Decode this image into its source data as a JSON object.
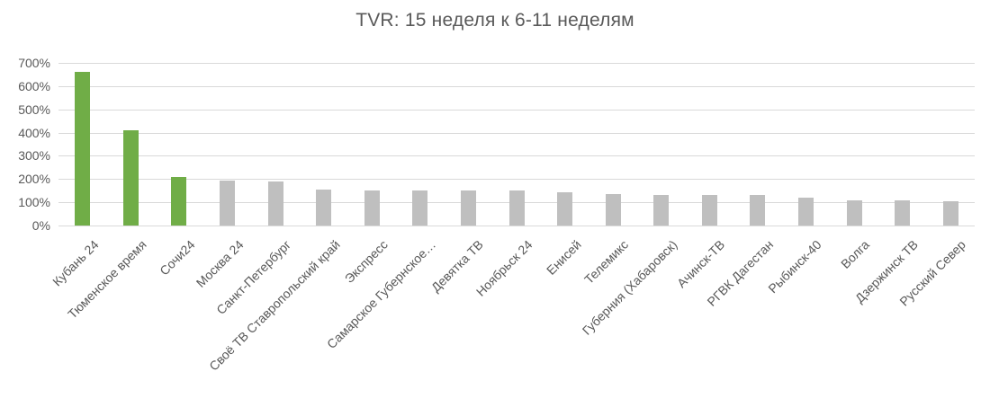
{
  "chart_data": {
    "type": "bar",
    "title": "TVR: 15 неделя к 6-11 неделям",
    "categories": [
      "Кубань 24",
      "Тюменское время",
      "Сочи24",
      "Москва 24",
      "Санкт-Петербург",
      "Своё ТВ Ставропольский край",
      "Экспресс",
      "Самарское Губернское…",
      "Девятка ТВ",
      "Ноябрьск 24",
      "Енисей",
      "Телемикс",
      "Губерния (Хабаровск)",
      "Ачинск-ТВ",
      "РГВК Дагестан",
      "Рыбинск-40",
      "Волга",
      "Дзержинск ТВ",
      "Русский Север"
    ],
    "values": [
      660,
      410,
      210,
      193,
      190,
      155,
      152,
      151,
      150,
      149,
      145,
      137,
      133,
      131,
      130,
      120,
      110,
      107,
      103
    ],
    "highlighted_categories": [
      "Кубань 24",
      "Тюменское время",
      "Сочи24"
    ],
    "xlabel": "",
    "ylabel": "",
    "ylim": [
      0,
      700
    ],
    "ytick_step": 100,
    "yticks": [
      "0%",
      "100%",
      "200%",
      "300%",
      "400%",
      "500%",
      "600%",
      "700%"
    ],
    "grid": "horizontal",
    "legend": "none",
    "x_label_rotation_deg": 45,
    "colors": {
      "highlight_bar": "#70AD47",
      "default_bar": "#BFBFBF",
      "gridline": "#D9D9D9",
      "axis_text": "#595959",
      "title_text": "#595959"
    }
  }
}
